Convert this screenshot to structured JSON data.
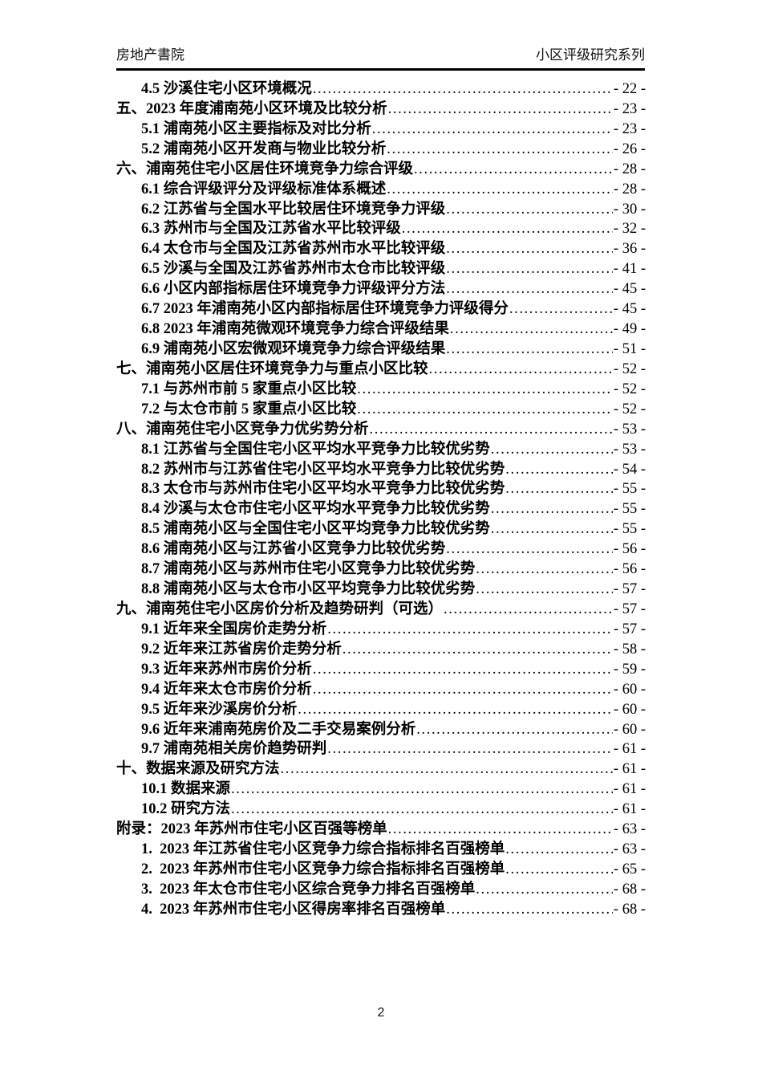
{
  "header": {
    "left": "房地产書院",
    "right": "小区评级研究系列"
  },
  "footer": {
    "page_number": "2"
  },
  "toc": {
    "entries": [
      {
        "level": 2,
        "title": "4.5 沙溪住宅小区环境概况",
        "page": "- 22 -"
      },
      {
        "level": 1,
        "title": "五、2023 年度浦南苑小区环境及比较分析",
        "page": "- 23 -"
      },
      {
        "level": 2,
        "title": "5.1 浦南苑小区主要指标及对比分析",
        "page": "- 23 -"
      },
      {
        "level": 2,
        "title": "5.2 浦南苑小区开发商与物业比较分析",
        "page": "- 26 -"
      },
      {
        "level": 1,
        "title": "六、浦南苑住宅小区居住环境竞争力综合评级",
        "page": "- 28 -"
      },
      {
        "level": 2,
        "title": "6.1 综合评级评分及评级标准体系概述",
        "page": "- 28 -"
      },
      {
        "level": 2,
        "title": "6.2 江苏省与全国水平比较居住环境竞争力评级",
        "page": "- 30 -"
      },
      {
        "level": 2,
        "title": "6.3 苏州市与全国及江苏省水平比较评级",
        "page": "- 32 -"
      },
      {
        "level": 2,
        "title": "6.4 太仓市与全国及江苏省苏州市水平比较评级",
        "page": "- 36 -"
      },
      {
        "level": 2,
        "title": "6.5 沙溪与全国及江苏省苏州市太仓市比较评级",
        "page": "- 41 -"
      },
      {
        "level": 2,
        "title": "6.6 小区内部指标居住环境竞争力评级评分方法",
        "page": "- 45 -"
      },
      {
        "level": 2,
        "title": "6.7 2023 年浦南苑小区内部指标居住环境竞争力评级得分",
        "page": "- 45 -"
      },
      {
        "level": 2,
        "title": "6.8 2023 年浦南苑微观环境竞争力综合评级结果",
        "page": "- 49 -"
      },
      {
        "level": 2,
        "title": "6.9 浦南苑小区宏微观环境竞争力综合评级结果",
        "page": "- 51 -"
      },
      {
        "level": 1,
        "title": "七、浦南苑小区居住环境竞争力与重点小区比较",
        "page": "- 52 -"
      },
      {
        "level": 2,
        "title": "7.1 与苏州市前 5 家重点小区比较",
        "page": "- 52 -"
      },
      {
        "level": 2,
        "title": "7.2 与太仓市前 5 家重点小区比较",
        "page": "- 52 -"
      },
      {
        "level": 1,
        "title": "八、浦南苑住宅小区竞争力优劣势分析",
        "page": "- 53 -"
      },
      {
        "level": 2,
        "title": "8.1 江苏省与全国住宅小区平均水平竞争力比较优劣势",
        "page": "- 53 -"
      },
      {
        "level": 2,
        "title": "8.2 苏州市与江苏省住宅小区平均水平竞争力比较优劣势",
        "page": "- 54 -"
      },
      {
        "level": 2,
        "title": "8.3 太仓市与苏州市住宅小区平均水平竞争力比较优劣势",
        "page": "- 55 -"
      },
      {
        "level": 2,
        "title": "8.4 沙溪与太仓市住宅小区平均水平竞争力比较优劣势",
        "page": "- 55 -"
      },
      {
        "level": 2,
        "title": "8.5 浦南苑小区与全国住宅小区平均竞争力比较优劣势",
        "page": "- 55 -"
      },
      {
        "level": 2,
        "title": "8.6 浦南苑小区与江苏省小区竞争力比较优劣势",
        "page": "- 56 -"
      },
      {
        "level": 2,
        "title": "8.7 浦南苑小区与苏州市住宅小区竞争力比较优劣势",
        "page": "- 56 -"
      },
      {
        "level": 2,
        "title": "8.8 浦南苑小区与太仓市小区平均竞争力比较优劣势",
        "page": "- 57 -"
      },
      {
        "level": 1,
        "title": "九、浦南苑住宅小区房价分析及趋势研判（可选）",
        "page": "- 57 -"
      },
      {
        "level": 2,
        "title": "9.1 近年来全国房价走势分析",
        "page": "- 57 -"
      },
      {
        "level": 2,
        "title": "9.2 近年来江苏省房价走势分析",
        "page": "- 58 -"
      },
      {
        "level": 2,
        "title": "9.3 近年来苏州市房价分析",
        "page": "- 59 -"
      },
      {
        "level": 2,
        "title": "9.4 近年来太仓市房价分析",
        "page": "- 60 -"
      },
      {
        "level": 2,
        "title": "9.5 近年来沙溪房价分析",
        "page": "- 60 -"
      },
      {
        "level": 2,
        "title": "9.6 近年来浦南苑房价及二手交易案例分析",
        "page": "- 60 -"
      },
      {
        "level": 2,
        "title": "9.7 浦南苑相关房价趋势研判",
        "page": "- 61 -"
      },
      {
        "level": 1,
        "title": "十、数据来源及研究方法",
        "page": "- 61 -"
      },
      {
        "level": 2,
        "title": "10.1 数据来源",
        "page": "- 61 -"
      },
      {
        "level": 2,
        "title": "10.2 研究方法",
        "page": "- 61 -"
      },
      {
        "level": 1,
        "title": "附录：2023 年苏州市住宅小区百强等榜单",
        "page": "- 63 -"
      },
      {
        "level": 2,
        "title": "1.  2023 年江苏省住宅小区竞争力综合指标排名百强榜单",
        "page": "- 63 -"
      },
      {
        "level": 2,
        "title": "2.  2023 年苏州市住宅小区竞争力综合指标排名百强榜单",
        "page": "- 65 -"
      },
      {
        "level": 2,
        "title": "3.  2023 年太仓市住宅小区综合竞争力排名百强榜单",
        "page": "- 68 -"
      },
      {
        "level": 2,
        "title": "4.  2023 年苏州市住宅小区得房率排名百强榜单",
        "page": "- 68 -"
      }
    ]
  }
}
